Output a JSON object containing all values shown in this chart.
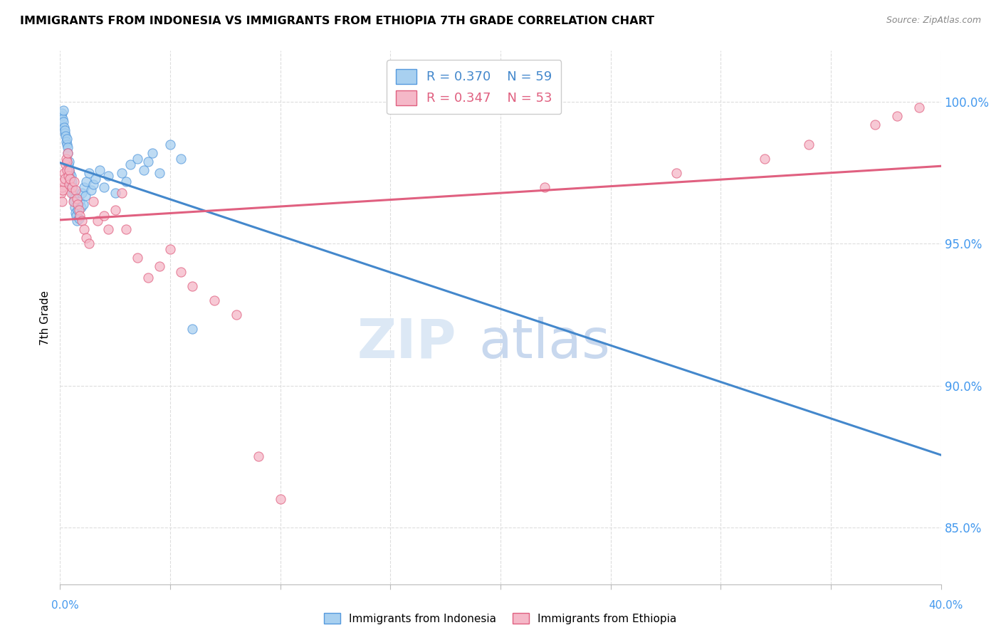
{
  "title": "IMMIGRANTS FROM INDONESIA VS IMMIGRANTS FROM ETHIOPIA 7TH GRADE CORRELATION CHART",
  "source": "Source: ZipAtlas.com",
  "ylabel": "7th Grade",
  "xmin": 0.0,
  "xmax": 40.0,
  "ymin": 83.0,
  "ymax": 101.8,
  "yticks": [
    85.0,
    90.0,
    95.0,
    100.0
  ],
  "xticks": [
    0,
    5,
    10,
    15,
    20,
    25,
    30,
    35,
    40
  ],
  "R_indonesia": 0.37,
  "N_indonesia": 59,
  "R_ethiopia": 0.347,
  "N_ethiopia": 53,
  "color_indonesia_fill": "#A8D0F0",
  "color_indonesia_edge": "#5599DD",
  "color_ethiopia_fill": "#F5B8C8",
  "color_ethiopia_edge": "#E06080",
  "color_trendline_indonesia": "#4488CC",
  "color_trendline_ethiopia": "#E06080",
  "watermark_zip_color": "#DCE8F5",
  "watermark_atlas_color": "#C8D8EE",
  "indonesia_x": [
    0.05,
    0.08,
    0.1,
    0.12,
    0.15,
    0.15,
    0.18,
    0.2,
    0.22,
    0.25,
    0.28,
    0.3,
    0.32,
    0.35,
    0.35,
    0.38,
    0.4,
    0.42,
    0.45,
    0.48,
    0.5,
    0.52,
    0.55,
    0.58,
    0.6,
    0.62,
    0.65,
    0.68,
    0.7,
    0.72,
    0.75,
    0.8,
    0.85,
    0.9,
    0.95,
    1.0,
    1.05,
    1.1,
    1.15,
    1.2,
    1.3,
    1.4,
    1.5,
    1.6,
    1.8,
    2.0,
    2.2,
    2.5,
    2.8,
    3.0,
    3.2,
    3.5,
    3.8,
    4.0,
    4.2,
    4.5,
    5.0,
    5.5,
    6.0
  ],
  "indonesia_y": [
    99.5,
    99.2,
    99.6,
    99.4,
    99.7,
    99.3,
    99.1,
    98.9,
    99.0,
    98.8,
    98.6,
    98.5,
    98.7,
    98.4,
    98.2,
    97.8,
    97.6,
    97.9,
    97.5,
    97.3,
    97.1,
    97.4,
    97.2,
    96.8,
    96.9,
    96.6,
    96.5,
    96.3,
    96.1,
    96.0,
    95.8,
    96.2,
    95.9,
    96.5,
    96.3,
    96.8,
    96.4,
    97.0,
    96.7,
    97.2,
    97.5,
    96.9,
    97.1,
    97.3,
    97.6,
    97.0,
    97.4,
    96.8,
    97.5,
    97.2,
    97.8,
    98.0,
    97.6,
    97.9,
    98.2,
    97.5,
    98.5,
    98.0,
    92.0
  ],
  "ethiopia_x": [
    0.05,
    0.08,
    0.1,
    0.12,
    0.15,
    0.18,
    0.2,
    0.25,
    0.28,
    0.3,
    0.32,
    0.35,
    0.38,
    0.4,
    0.42,
    0.45,
    0.5,
    0.55,
    0.6,
    0.65,
    0.7,
    0.75,
    0.8,
    0.85,
    0.9,
    1.0,
    1.1,
    1.2,
    1.3,
    1.5,
    1.7,
    2.0,
    2.2,
    2.5,
    2.8,
    3.0,
    3.5,
    4.0,
    4.5,
    5.0,
    5.5,
    6.0,
    7.0,
    8.0,
    9.0,
    10.0,
    22.0,
    28.0,
    32.0,
    34.0,
    37.0,
    38.0,
    39.0
  ],
  "ethiopia_y": [
    96.8,
    97.0,
    96.5,
    96.9,
    97.2,
    97.5,
    97.3,
    97.8,
    98.0,
    97.6,
    97.9,
    98.2,
    97.4,
    97.1,
    97.6,
    97.3,
    96.8,
    97.0,
    96.5,
    97.2,
    96.9,
    96.6,
    96.4,
    96.2,
    96.0,
    95.8,
    95.5,
    95.2,
    95.0,
    96.5,
    95.8,
    96.0,
    95.5,
    96.2,
    96.8,
    95.5,
    94.5,
    93.8,
    94.2,
    94.8,
    94.0,
    93.5,
    93.0,
    92.5,
    87.5,
    86.0,
    97.0,
    97.5,
    98.0,
    98.5,
    99.2,
    99.5,
    99.8
  ]
}
